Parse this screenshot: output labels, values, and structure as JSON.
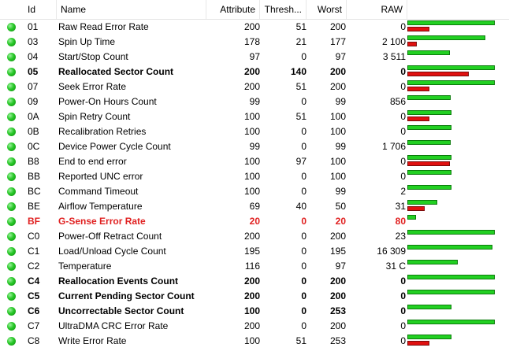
{
  "headers": {
    "id": "Id",
    "name": "Name",
    "attribute": "Attribute",
    "threshold": "Thresh...",
    "worst": "Worst",
    "raw": "RAW"
  },
  "status_color": "#22c822",
  "rows": [
    {
      "id": "01",
      "name": "Raw Read Error Rate",
      "attribute": "200",
      "threshold": "51",
      "worst": "200",
      "raw": "0",
      "bold": false,
      "critical": false,
      "attr_level": 1.0,
      "thr_level": 0.255
    },
    {
      "id": "03",
      "name": "Spin Up Time",
      "attribute": "178",
      "threshold": "21",
      "worst": "177",
      "raw": "2 100",
      "bold": false,
      "critical": false,
      "attr_level": 0.89,
      "thr_level": 0.105
    },
    {
      "id": "04",
      "name": "Start/Stop Count",
      "attribute": "97",
      "threshold": "0",
      "worst": "97",
      "raw": "3 511",
      "bold": false,
      "critical": false,
      "attr_level": 0.485,
      "thr_level": 0
    },
    {
      "id": "05",
      "name": "Reallocated Sector Count",
      "attribute": "200",
      "threshold": "140",
      "worst": "200",
      "raw": "0",
      "bold": true,
      "critical": false,
      "attr_level": 1.0,
      "thr_level": 0.7
    },
    {
      "id": "07",
      "name": "Seek Error Rate",
      "attribute": "200",
      "threshold": "51",
      "worst": "200",
      "raw": "0",
      "bold": false,
      "critical": false,
      "attr_level": 1.0,
      "thr_level": 0.255
    },
    {
      "id": "09",
      "name": "Power-On Hours Count",
      "attribute": "99",
      "threshold": "0",
      "worst": "99",
      "raw": "856",
      "bold": false,
      "critical": false,
      "attr_level": 0.495,
      "thr_level": 0
    },
    {
      "id": "0A",
      "name": "Spin Retry Count",
      "attribute": "100",
      "threshold": "51",
      "worst": "100",
      "raw": "0",
      "bold": false,
      "critical": false,
      "attr_level": 0.5,
      "thr_level": 0.255
    },
    {
      "id": "0B",
      "name": "Recalibration Retries",
      "attribute": "100",
      "threshold": "0",
      "worst": "100",
      "raw": "0",
      "bold": false,
      "critical": false,
      "attr_level": 0.5,
      "thr_level": 0
    },
    {
      "id": "0C",
      "name": "Device Power Cycle Count",
      "attribute": "99",
      "threshold": "0",
      "worst": "99",
      "raw": "1 706",
      "bold": false,
      "critical": false,
      "attr_level": 0.495,
      "thr_level": 0
    },
    {
      "id": "B8",
      "name": "End to end error",
      "attribute": "100",
      "threshold": "97",
      "worst": "100",
      "raw": "0",
      "bold": false,
      "critical": false,
      "attr_level": 0.5,
      "thr_level": 0.485
    },
    {
      "id": "BB",
      "name": "Reported UNC error",
      "attribute": "100",
      "threshold": "0",
      "worst": "100",
      "raw": "0",
      "bold": false,
      "critical": false,
      "attr_level": 0.5,
      "thr_level": 0
    },
    {
      "id": "BC",
      "name": "Command Timeout",
      "attribute": "100",
      "threshold": "0",
      "worst": "99",
      "raw": "2",
      "bold": false,
      "critical": false,
      "attr_level": 0.5,
      "thr_level": 0
    },
    {
      "id": "BE",
      "name": "Airflow Temperature",
      "attribute": "69",
      "threshold": "40",
      "worst": "50",
      "raw": "31",
      "bold": false,
      "critical": false,
      "attr_level": 0.345,
      "thr_level": 0.2
    },
    {
      "id": "BF",
      "name": "G-Sense Error Rate",
      "attribute": "20",
      "threshold": "0",
      "worst": "20",
      "raw": "80",
      "bold": true,
      "critical": true,
      "attr_level": 0.1,
      "thr_level": 0
    },
    {
      "id": "C0",
      "name": "Power-Off Retract Count",
      "attribute": "200",
      "threshold": "0",
      "worst": "200",
      "raw": "23",
      "bold": false,
      "critical": false,
      "attr_level": 1.0,
      "thr_level": 0
    },
    {
      "id": "C1",
      "name": "Load/Unload Cycle Count",
      "attribute": "195",
      "threshold": "0",
      "worst": "195",
      "raw": "16 309",
      "bold": false,
      "critical": false,
      "attr_level": 0.975,
      "thr_level": 0
    },
    {
      "id": "C2",
      "name": "Temperature",
      "attribute": "116",
      "threshold": "0",
      "worst": "97",
      "raw": "31 C",
      "bold": false,
      "critical": false,
      "attr_level": 0.58,
      "thr_level": 0
    },
    {
      "id": "C4",
      "name": "Reallocation Events Count",
      "attribute": "200",
      "threshold": "0",
      "worst": "200",
      "raw": "0",
      "bold": true,
      "critical": false,
      "attr_level": 1.0,
      "thr_level": 0
    },
    {
      "id": "C5",
      "name": "Current Pending Sector Count",
      "attribute": "200",
      "threshold": "0",
      "worst": "200",
      "raw": "0",
      "bold": true,
      "critical": false,
      "attr_level": 1.0,
      "thr_level": 0
    },
    {
      "id": "C6",
      "name": "Uncorrectable Sector Count",
      "attribute": "100",
      "threshold": "0",
      "worst": "253",
      "raw": "0",
      "bold": true,
      "critical": false,
      "attr_level": 0.5,
      "thr_level": 0
    },
    {
      "id": "C7",
      "name": "UltraDMA CRC Error Rate",
      "attribute": "200",
      "threshold": "0",
      "worst": "200",
      "raw": "0",
      "bold": false,
      "critical": false,
      "attr_level": 1.0,
      "thr_level": 0
    },
    {
      "id": "C8",
      "name": "Write Error Rate",
      "attribute": "100",
      "threshold": "51",
      "worst": "253",
      "raw": "0",
      "bold": false,
      "critical": false,
      "attr_level": 0.5,
      "thr_level": 0.255
    }
  ]
}
